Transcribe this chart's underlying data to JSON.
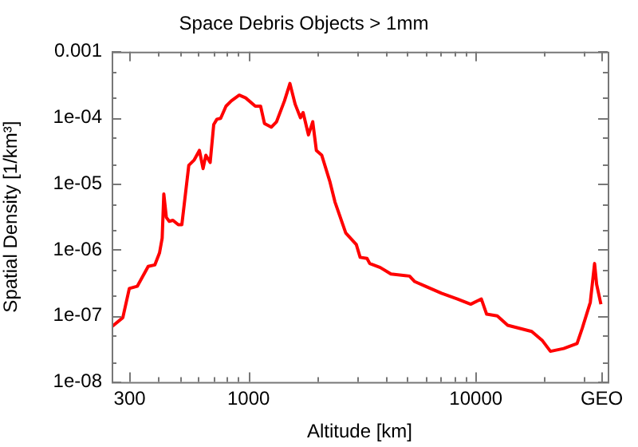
{
  "chart_data": {
    "type": "line",
    "title": "Space Debris Objects > 1mm",
    "xlabel": "Altitude [km]",
    "ylabel": "Spatial Density [1/km³]",
    "log": "xy",
    "grid": false,
    "legend": false,
    "marker": "none",
    "line_style": "solid",
    "xlim": [
      250,
      38000
    ],
    "ylim": [
      1e-08,
      0.001
    ],
    "xticks": [
      {
        "value": 300,
        "label": "300"
      },
      {
        "value": 400,
        "label": null
      },
      {
        "value": 500,
        "label": null
      },
      {
        "value": 600,
        "label": null
      },
      {
        "value": 700,
        "label": null
      },
      {
        "value": 800,
        "label": null
      },
      {
        "value": 900,
        "label": null
      },
      {
        "value": 1000,
        "label": "1000"
      },
      {
        "value": 2000,
        "label": null
      },
      {
        "value": 3000,
        "label": null
      },
      {
        "value": 4000,
        "label": null
      },
      {
        "value": 5000,
        "label": null
      },
      {
        "value": 6000,
        "label": null
      },
      {
        "value": 7000,
        "label": null
      },
      {
        "value": 8000,
        "label": null
      },
      {
        "value": 9000,
        "label": null
      },
      {
        "value": 10000,
        "label": "10000"
      },
      {
        "value": 20000,
        "label": null
      },
      {
        "value": 30000,
        "label": null
      },
      {
        "value": 35786,
        "label": "GEO"
      }
    ],
    "yticks": [
      {
        "value": 1e-08,
        "label": "1e-08"
      },
      {
        "value": 2e-08,
        "label": null
      },
      {
        "value": 5e-08,
        "label": null
      },
      {
        "value": 1e-07,
        "label": "1e-07"
      },
      {
        "value": 2e-07,
        "label": null
      },
      {
        "value": 5e-07,
        "label": null
      },
      {
        "value": 1e-06,
        "label": "1e-06"
      },
      {
        "value": 2e-06,
        "label": null
      },
      {
        "value": 5e-06,
        "label": null
      },
      {
        "value": 1e-05,
        "label": "1e-05"
      },
      {
        "value": 2e-05,
        "label": null
      },
      {
        "value": 5e-05,
        "label": null
      },
      {
        "value": 0.0001,
        "label": "1e-04"
      },
      {
        "value": 0.0002,
        "label": null
      },
      {
        "value": 0.0005,
        "label": null
      },
      {
        "value": 0.001,
        "label": "0.001"
      }
    ],
    "series": [
      {
        "color": "#ff0000",
        "x": [
          250,
          280,
          299,
          324,
          362,
          387,
          406,
          417,
          424,
          435,
          448,
          465,
          491,
          509,
          546,
          577,
          608,
          631,
          649,
          678,
          703,
          726,
          754,
          796,
          840,
          910,
          971,
          1071,
          1130,
          1175,
          1259,
          1328,
          1439,
          1521,
          1604,
          1692,
          1738,
          1835,
          1916,
          1988,
          2100,
          2276,
          2400,
          2677,
          2979,
          3097,
          3320,
          3413,
          3796,
          4230,
          5107,
          5383,
          6000,
          7060,
          8300,
          9490,
          10570,
          11150,
          12420,
          13800,
          17600,
          19630,
          21280,
          24330,
          27860,
          29380,
          31860,
          33270,
          33970,
          35480
        ],
        "values": [
          6.8e-08,
          9.4e-08,
          2.6e-07,
          2.8e-07,
          5.6e-07,
          5.9e-07,
          9e-07,
          1.5e-06,
          7e-06,
          3.1e-06,
          2.7e-06,
          2.8e-06,
          2.4e-06,
          2.4e-06,
          1.9e-05,
          2.3e-05,
          3.2e-05,
          1.7e-05,
          2.7e-05,
          2.1e-05,
          7.9e-05,
          9.5e-05,
          9.8e-05,
          0.00015,
          0.00018,
          0.00022,
          0.0002,
          0.00015,
          0.00015,
          8.2e-05,
          7.2e-05,
          8.7e-05,
          0.00018,
          0.00033,
          0.00016,
          0.0001,
          0.00012,
          5.5e-05,
          8.7e-05,
          3.2e-05,
          2.7e-05,
          1.1e-05,
          5.3e-06,
          1.8e-06,
          1.2e-06,
          7.7e-07,
          7.4e-07,
          6.2e-07,
          5.4e-07,
          4.3e-07,
          4e-07,
          3.3e-07,
          2.8e-07,
          2.2e-07,
          1.8e-07,
          1.5e-07,
          1.8e-07,
          1.06e-07,
          1e-07,
          7.2e-08,
          5.8e-08,
          4.2e-08,
          2.9e-08,
          3.2e-08,
          3.8e-08,
          6.5e-08,
          1.6e-07,
          6.2e-07,
          3e-07,
          1.5e-07
        ]
      }
    ]
  }
}
